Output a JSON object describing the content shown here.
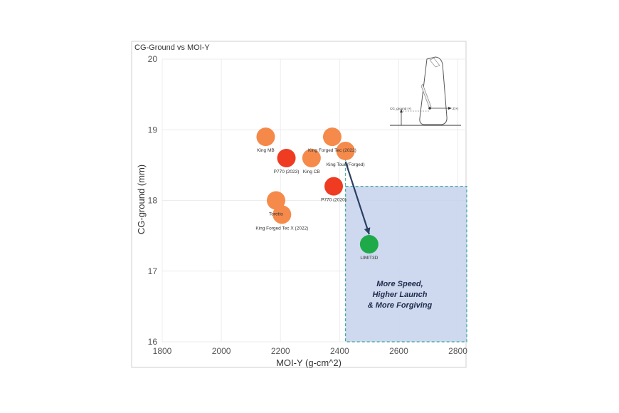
{
  "chart_data": {
    "type": "scatter",
    "title": "CG-Ground vs MOI-Y",
    "xlabel": "MOI-Y (g-cm^2)",
    "ylabel": "CG-ground (mm)",
    "xlim": [
      1800,
      2830
    ],
    "ylim": [
      16,
      20
    ],
    "xticks": [
      1800,
      2000,
      2200,
      2400,
      2600,
      2800
    ],
    "yticks": [
      16,
      17,
      18,
      19,
      20
    ],
    "grid": true,
    "points": [
      {
        "label": "King MB",
        "x": 2150,
        "y": 18.9,
        "color": "#f5894a"
      },
      {
        "label": "P770 (2023)",
        "x": 2220,
        "y": 18.6,
        "color": "#ee3b22"
      },
      {
        "label": "King CB",
        "x": 2305,
        "y": 18.6,
        "color": "#f58a4b"
      },
      {
        "label": "King Forged Tec (2022)",
        "x": 2375,
        "y": 18.9,
        "color": "#f58a4b"
      },
      {
        "label": "King Tour (Forged)",
        "x": 2420,
        "y": 18.7,
        "color": "#f58a4b"
      },
      {
        "label": "P770 (2020)",
        "x": 2380,
        "y": 18.2,
        "color": "#ee3b22"
      },
      {
        "label": "Toretto",
        "x": 2185,
        "y": 18.0,
        "color": "#f58a4b"
      },
      {
        "label": "King Forged Tec X (2022)",
        "x": 2205,
        "y": 17.8,
        "color": "#f58a4b"
      },
      {
        "label": "LIMIT3D",
        "x": 2500,
        "y": 17.38,
        "color": "#1faa4a"
      }
    ],
    "arrow": {
      "from": [
        2420,
        18.55
      ],
      "to": [
        2500,
        17.52
      ],
      "color": "#2b3f63"
    },
    "highlight_region": {
      "x_from": 2420,
      "x_to": 2830,
      "y_from": 16,
      "y_to": 18.2,
      "fill": "#c6d2ec",
      "border": "#3aa89a"
    },
    "callout_lines": [
      "More Speed,",
      "Higher Launch",
      "& More Forgiving"
    ]
  },
  "diagram": {
    "labels": {
      "cg_ground": "CG_ground (+)",
      "z": "Z(+)"
    }
  }
}
